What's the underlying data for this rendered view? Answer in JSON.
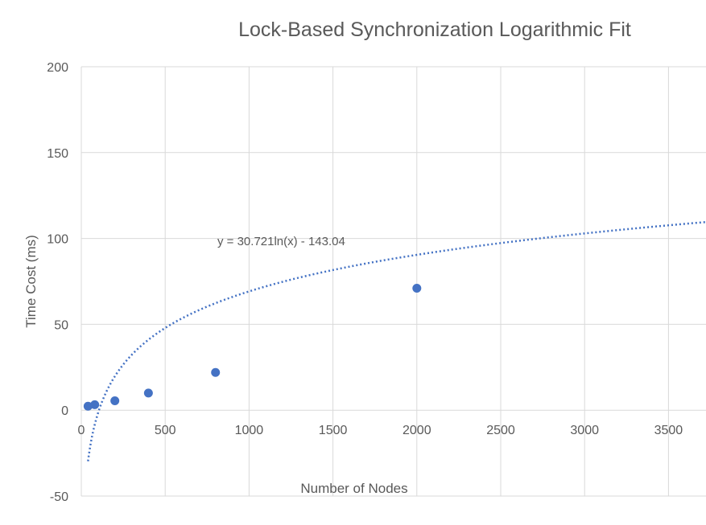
{
  "chart_data": {
    "type": "scatter",
    "title": "Lock-Based Synchronization Logarithmic Fit",
    "xlabel": "Number of Nodes",
    "ylabel": "Time Cost (ms)",
    "xlim": [
      0,
      3700
    ],
    "ylim": [
      -50,
      200
    ],
    "x_ticks": [
      0,
      500,
      1000,
      1500,
      2000,
      2500,
      3000,
      3500
    ],
    "y_ticks": [
      -50,
      0,
      50,
      100,
      150,
      200
    ],
    "grid": true,
    "legend": "none",
    "series": [
      {
        "x": [
          40,
          80,
          200,
          400,
          800,
          2000
        ],
        "y": [
          2.3,
          3.2,
          5.5,
          10,
          22,
          71
        ],
        "color": "#4472C4"
      }
    ],
    "trendline": {
      "kind": "logarithmic",
      "a": 30.721,
      "b": -143.04,
      "equation_label": "y = 30.721ln(x) - 143.04",
      "color": "#4472C4",
      "style": "dotted"
    }
  }
}
